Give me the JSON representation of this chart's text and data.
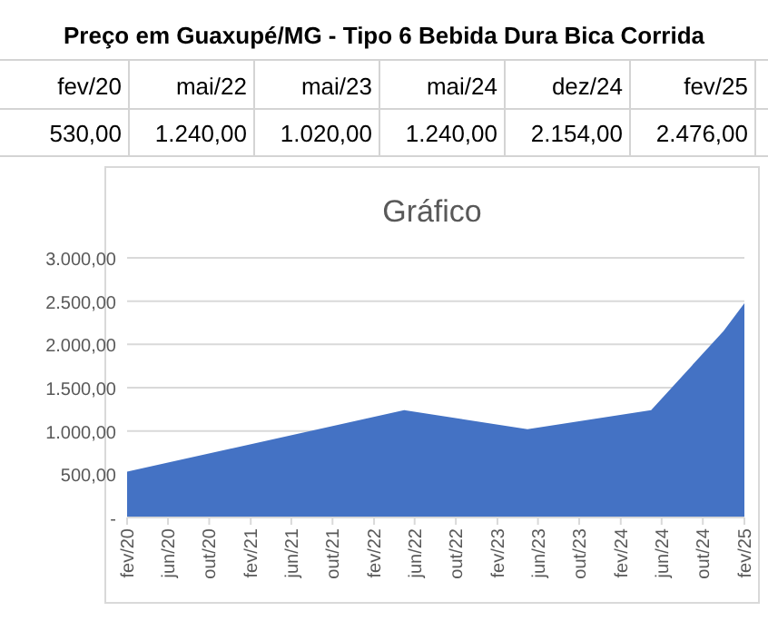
{
  "chart_data": [
    {
      "type": "other",
      "title": "Preço em Guaxupé/MG - Tipo 6 Bebida Dura Bica Corrida",
      "annotations": [
        "fev/20",
        "mai/22",
        "mai/23",
        "mai/24",
        "dez/24",
        "fev/25",
        "530,00",
        "1.240,00",
        "1.020,00",
        "1.240,00",
        "2.154,00",
        "2.476,00"
      ]
    },
    {
      "type": "area",
      "title": "Gráfico",
      "x": [
        "2020-02",
        "2022-05",
        "2023-05",
        "2024-05",
        "2024-12",
        "2025-02"
      ],
      "values": [
        530,
        1240,
        1020,
        1240,
        2154,
        2476
      ],
      "color": "#4472c4",
      "xlim": [
        "2020-02",
        "2025-02"
      ],
      "xticks": [
        {
          "value": "2020-02",
          "label": "fev/20"
        },
        {
          "value": "2020-06",
          "label": "jun/20"
        },
        {
          "value": "2020-10",
          "label": "out/20"
        },
        {
          "value": "2021-02",
          "label": "fev/21"
        },
        {
          "value": "2021-06",
          "label": "jun/21"
        },
        {
          "value": "2021-10",
          "label": "out/21"
        },
        {
          "value": "2022-02",
          "label": "fev/22"
        },
        {
          "value": "2022-06",
          "label": "jun/22"
        },
        {
          "value": "2022-10",
          "label": "out/22"
        },
        {
          "value": "2023-02",
          "label": "fev/23"
        },
        {
          "value": "2023-06",
          "label": "jun/23"
        },
        {
          "value": "2023-10",
          "label": "out/23"
        },
        {
          "value": "2024-02",
          "label": "fev/24"
        },
        {
          "value": "2024-06",
          "label": "jun/24"
        },
        {
          "value": "2024-10",
          "label": "out/24"
        },
        {
          "value": "2025-02",
          "label": "fev/25"
        }
      ],
      "ylim": [
        0,
        3000
      ],
      "yticks": [
        {
          "value": 0,
          "label": "-"
        },
        {
          "value": 500,
          "label": "500,00"
        },
        {
          "value": 1000,
          "label": "1.000,00"
        },
        {
          "value": 1500,
          "label": "1.500,00"
        },
        {
          "value": 2000,
          "label": "2.000,00"
        },
        {
          "value": 2500,
          "label": "2.500,00"
        },
        {
          "value": 3000,
          "label": "3.000,00"
        }
      ],
      "grid": "y"
    }
  ]
}
